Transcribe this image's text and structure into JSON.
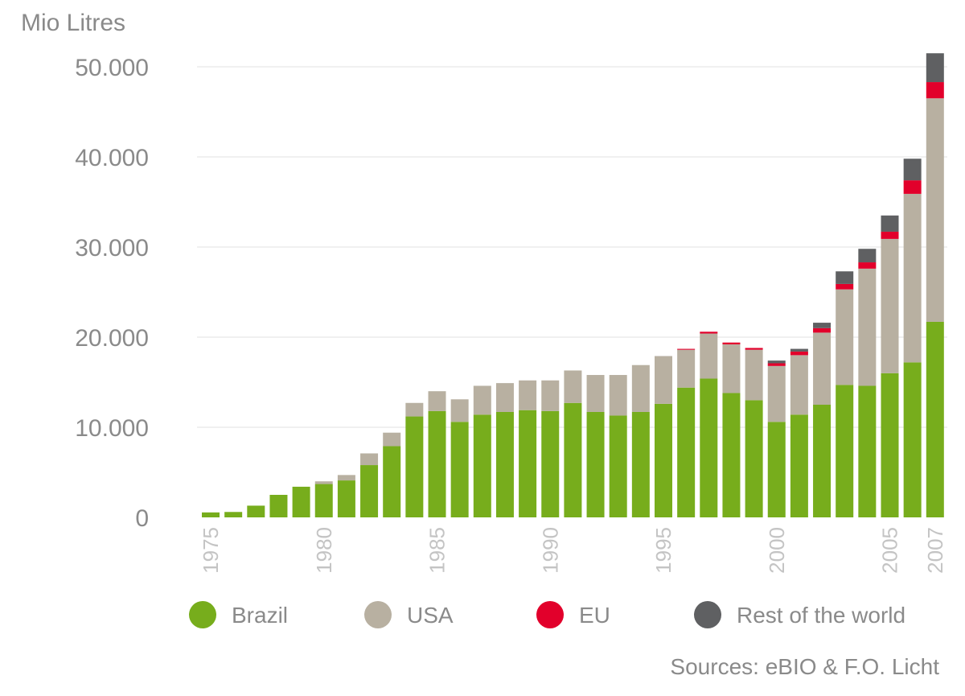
{
  "chart_data": {
    "type": "bar",
    "stacked": true,
    "unit_label": "Mio Litres",
    "ylim": [
      0,
      50000
    ],
    "y_ticks": [
      "50.000",
      "40.000",
      "30.000",
      "20.000",
      "10.000",
      "0"
    ],
    "y_tick_values": [
      50000,
      40000,
      30000,
      20000,
      10000,
      0
    ],
    "grid": true,
    "categories": [
      1975,
      1976,
      1977,
      1978,
      1979,
      1980,
      1981,
      1982,
      1983,
      1984,
      1985,
      1986,
      1987,
      1988,
      1989,
      1990,
      1991,
      1992,
      1993,
      1994,
      1995,
      1996,
      1997,
      1998,
      1999,
      2000,
      2001,
      2002,
      2003,
      2004,
      2005,
      2006,
      2007
    ],
    "x_tick_labels": [
      {
        "year": 1975,
        "label": "1975"
      },
      {
        "year": 1980,
        "label": "1980"
      },
      {
        "year": 1985,
        "label": "1985"
      },
      {
        "year": 1990,
        "label": "1990"
      },
      {
        "year": 1995,
        "label": "1995"
      },
      {
        "year": 2000,
        "label": "2000"
      },
      {
        "year": 2005,
        "label": "2005"
      },
      {
        "year": 2007,
        "label": "2007"
      }
    ],
    "series": [
      {
        "name": "Brazil",
        "color": "#77ad1c",
        "values": [
          550,
          600,
          1300,
          2500,
          3400,
          3700,
          4100,
          5800,
          7900,
          11200,
          11800,
          10600,
          11400,
          11700,
          11900,
          11800,
          12700,
          11700,
          11300,
          11700,
          12600,
          14400,
          15400,
          13800,
          13000,
          10600,
          11400,
          12500,
          14700,
          14600,
          16000,
          17200,
          21700
        ]
      },
      {
        "name": "USA",
        "color": "#b8b0a1",
        "values": [
          0,
          0,
          0,
          0,
          0,
          300,
          600,
          1300,
          1500,
          1500,
          2200,
          2500,
          3200,
          3200,
          3300,
          3400,
          3600,
          4100,
          4500,
          5200,
          5300,
          4200,
          5000,
          5400,
          5600,
          6200,
          6600,
          8000,
          10600,
          13000,
          14900,
          18700,
          24800
        ]
      },
      {
        "name": "EU",
        "color": "#e2002b",
        "values": [
          0,
          0,
          0,
          0,
          0,
          0,
          0,
          0,
          0,
          0,
          0,
          0,
          0,
          0,
          0,
          0,
          0,
          0,
          0,
          0,
          0,
          100,
          200,
          200,
          200,
          300,
          400,
          500,
          600,
          700,
          800,
          1500,
          1800
        ]
      },
      {
        "name": "Rest of the world",
        "color": "#5f6062",
        "values": [
          0,
          0,
          0,
          0,
          0,
          0,
          0,
          0,
          0,
          0,
          0,
          0,
          0,
          0,
          0,
          0,
          0,
          0,
          0,
          0,
          0,
          0,
          0,
          0,
          0,
          300,
          300,
          600,
          1400,
          1500,
          1800,
          2400,
          3200
        ]
      }
    ]
  },
  "source": "Sources: eBIO & F.O. Licht"
}
